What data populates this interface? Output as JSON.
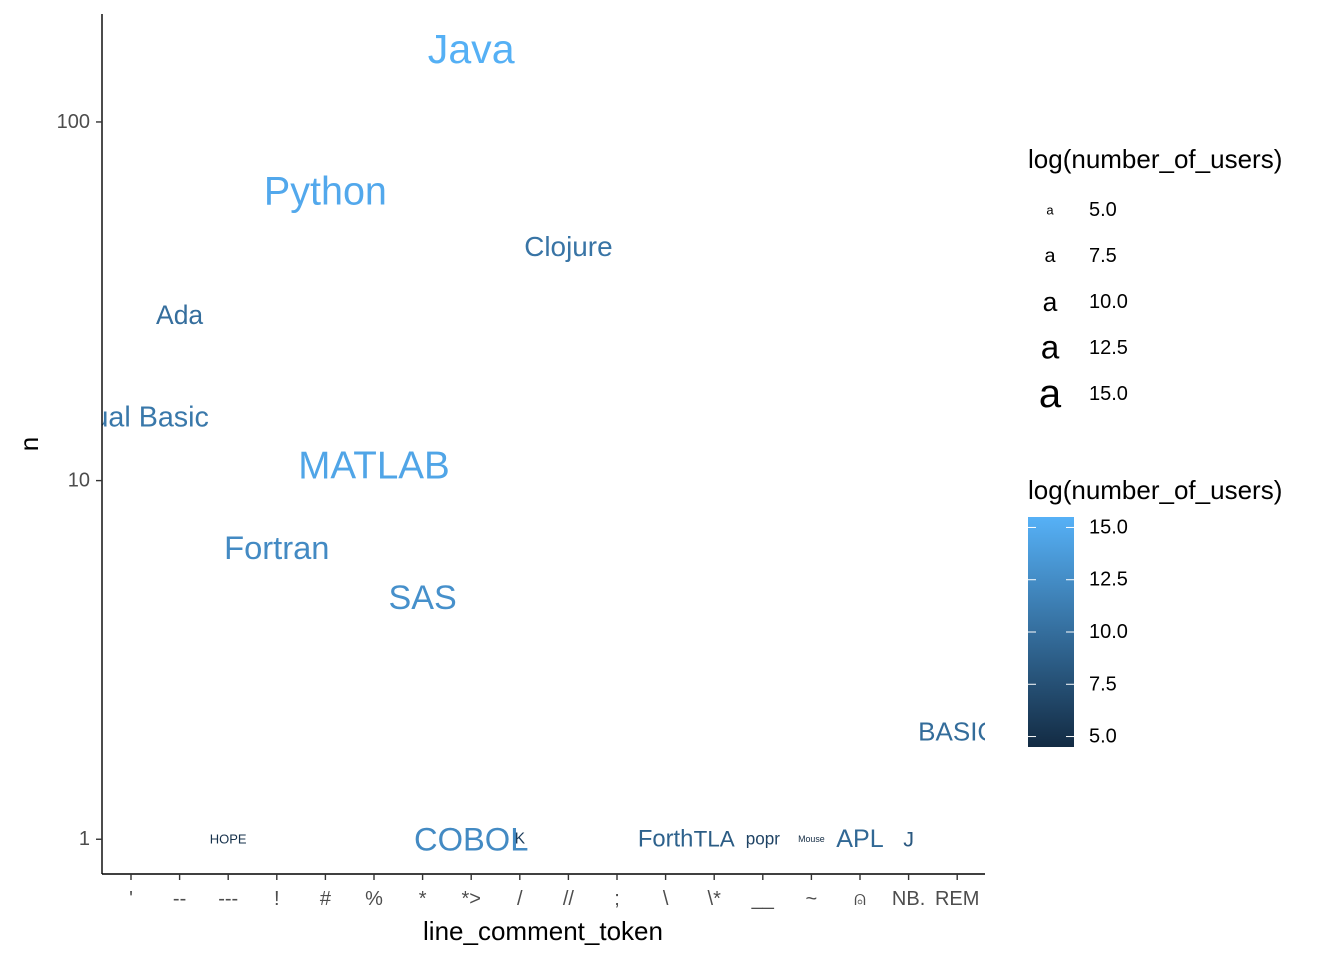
{
  "chart_data": {
    "type": "scatter",
    "mark": "text",
    "xlabel": "line_comment_token",
    "ylabel": "n",
    "y_scale": "log10",
    "ylim": [
      0.8,
      200
    ],
    "y_ticks": [
      {
        "value": 1,
        "label": "1"
      },
      {
        "value": 10,
        "label": "10"
      },
      {
        "value": 100,
        "label": "100"
      }
    ],
    "categories": [
      "'",
      "--",
      "---",
      "!",
      "#",
      "%",
      "*",
      "*>",
      "/",
      "//",
      ";",
      "\\",
      "\\*",
      "__",
      "~",
      "⍝",
      "NB.",
      "REM"
    ],
    "points": [
      {
        "label": "Java",
        "x": "*>",
        "y": 160,
        "color_value": 15.4
      },
      {
        "label": "Python",
        "x": "#",
        "y": 64,
        "color_value": 14.8
      },
      {
        "label": "Clojure",
        "x": "//",
        "y": 45,
        "color_value": 10.5
      },
      {
        "label": "Ada",
        "x": "--",
        "y": 29,
        "color_value": 10.0
      },
      {
        "label": "Visual Basic",
        "x": "'",
        "y": 15,
        "color_value": 10.8
      },
      {
        "label": "MATLAB",
        "x": "%",
        "y": 11,
        "color_value": 14.5
      },
      {
        "label": "Fortran",
        "x": "!",
        "y": 6.5,
        "color_value": 12.3
      },
      {
        "label": "SAS",
        "x": "*",
        "y": 4.7,
        "color_value": 12.8
      },
      {
        "label": "BASIC",
        "x": "REM",
        "y": 2,
        "color_value": 9.8
      },
      {
        "label": "HOPE",
        "x": "---",
        "y": 1,
        "color_value": 5.0
      },
      {
        "label": "COBOL",
        "x": "*>",
        "y": 1,
        "color_value": 12.3
      },
      {
        "label": "K",
        "x": "/",
        "y": 1,
        "color_value": 6.0
      },
      {
        "label": "Forth",
        "x": "\\",
        "y": 1,
        "color_value": 9.0
      },
      {
        "label": "TLA",
        "x": "\\*",
        "y": 1,
        "color_value": 8.5
      },
      {
        "label": "popr",
        "x": "__",
        "y": 1,
        "color_value": 6.5
      },
      {
        "label": "Mouse",
        "x": "~",
        "y": 1,
        "color_value": 3.5
      },
      {
        "label": "APL",
        "x": "⍝",
        "y": 1,
        "color_value": 9.5
      },
      {
        "label": "J",
        "x": "NB.",
        "y": 1,
        "color_value": 8.2
      }
    ],
    "legend_size": {
      "title": "log(number_of_users)",
      "entries": [
        {
          "value": 5.0,
          "label": "5.0"
        },
        {
          "value": 7.5,
          "label": "7.5"
        },
        {
          "value": 10.0,
          "label": "10.0"
        },
        {
          "value": 12.5,
          "label": "12.5"
        },
        {
          "value": 15.0,
          "label": "15.0"
        }
      ],
      "glyph": "a"
    },
    "legend_color": {
      "title": "log(number_of_users)",
      "range": [
        4.5,
        15.5
      ],
      "low_color": "#132b43",
      "high_color": "#56b1f7",
      "ticks": [
        {
          "value": 15.0,
          "label": "15.0"
        },
        {
          "value": 12.5,
          "label": "12.5"
        },
        {
          "value": 10.0,
          "label": "10.0"
        },
        {
          "value": 7.5,
          "label": "7.5"
        },
        {
          "value": 5.0,
          "label": "5.0"
        }
      ]
    },
    "grid": false,
    "legend_position": "right"
  }
}
